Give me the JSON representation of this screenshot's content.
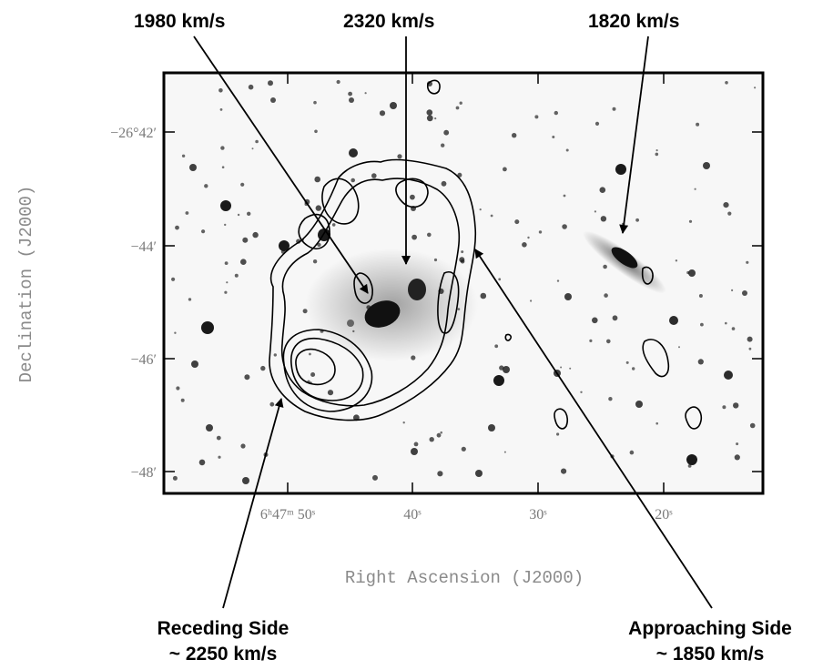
{
  "figure": {
    "velocity_labels": {
      "left": "1980 km/s",
      "center": "2320 km/s",
      "right": "1820 km/s"
    },
    "receding": {
      "line1": "Receding Side",
      "line2": "~ 2250 km/s"
    },
    "approaching": {
      "line1": "Approaching Side",
      "line2": "~ 1850 km/s"
    },
    "y_axis": {
      "label": "Declination (J2000)",
      "ticks": [
        "−26°42′",
        "−44′",
        "−46′",
        "−48′"
      ]
    },
    "x_axis": {
      "label": "Right Ascension (J2000)",
      "ticks": [
        "6ʰ47ᵐ 50ˢ",
        "40ˢ",
        "30ˢ",
        "20ˢ"
      ]
    }
  }
}
